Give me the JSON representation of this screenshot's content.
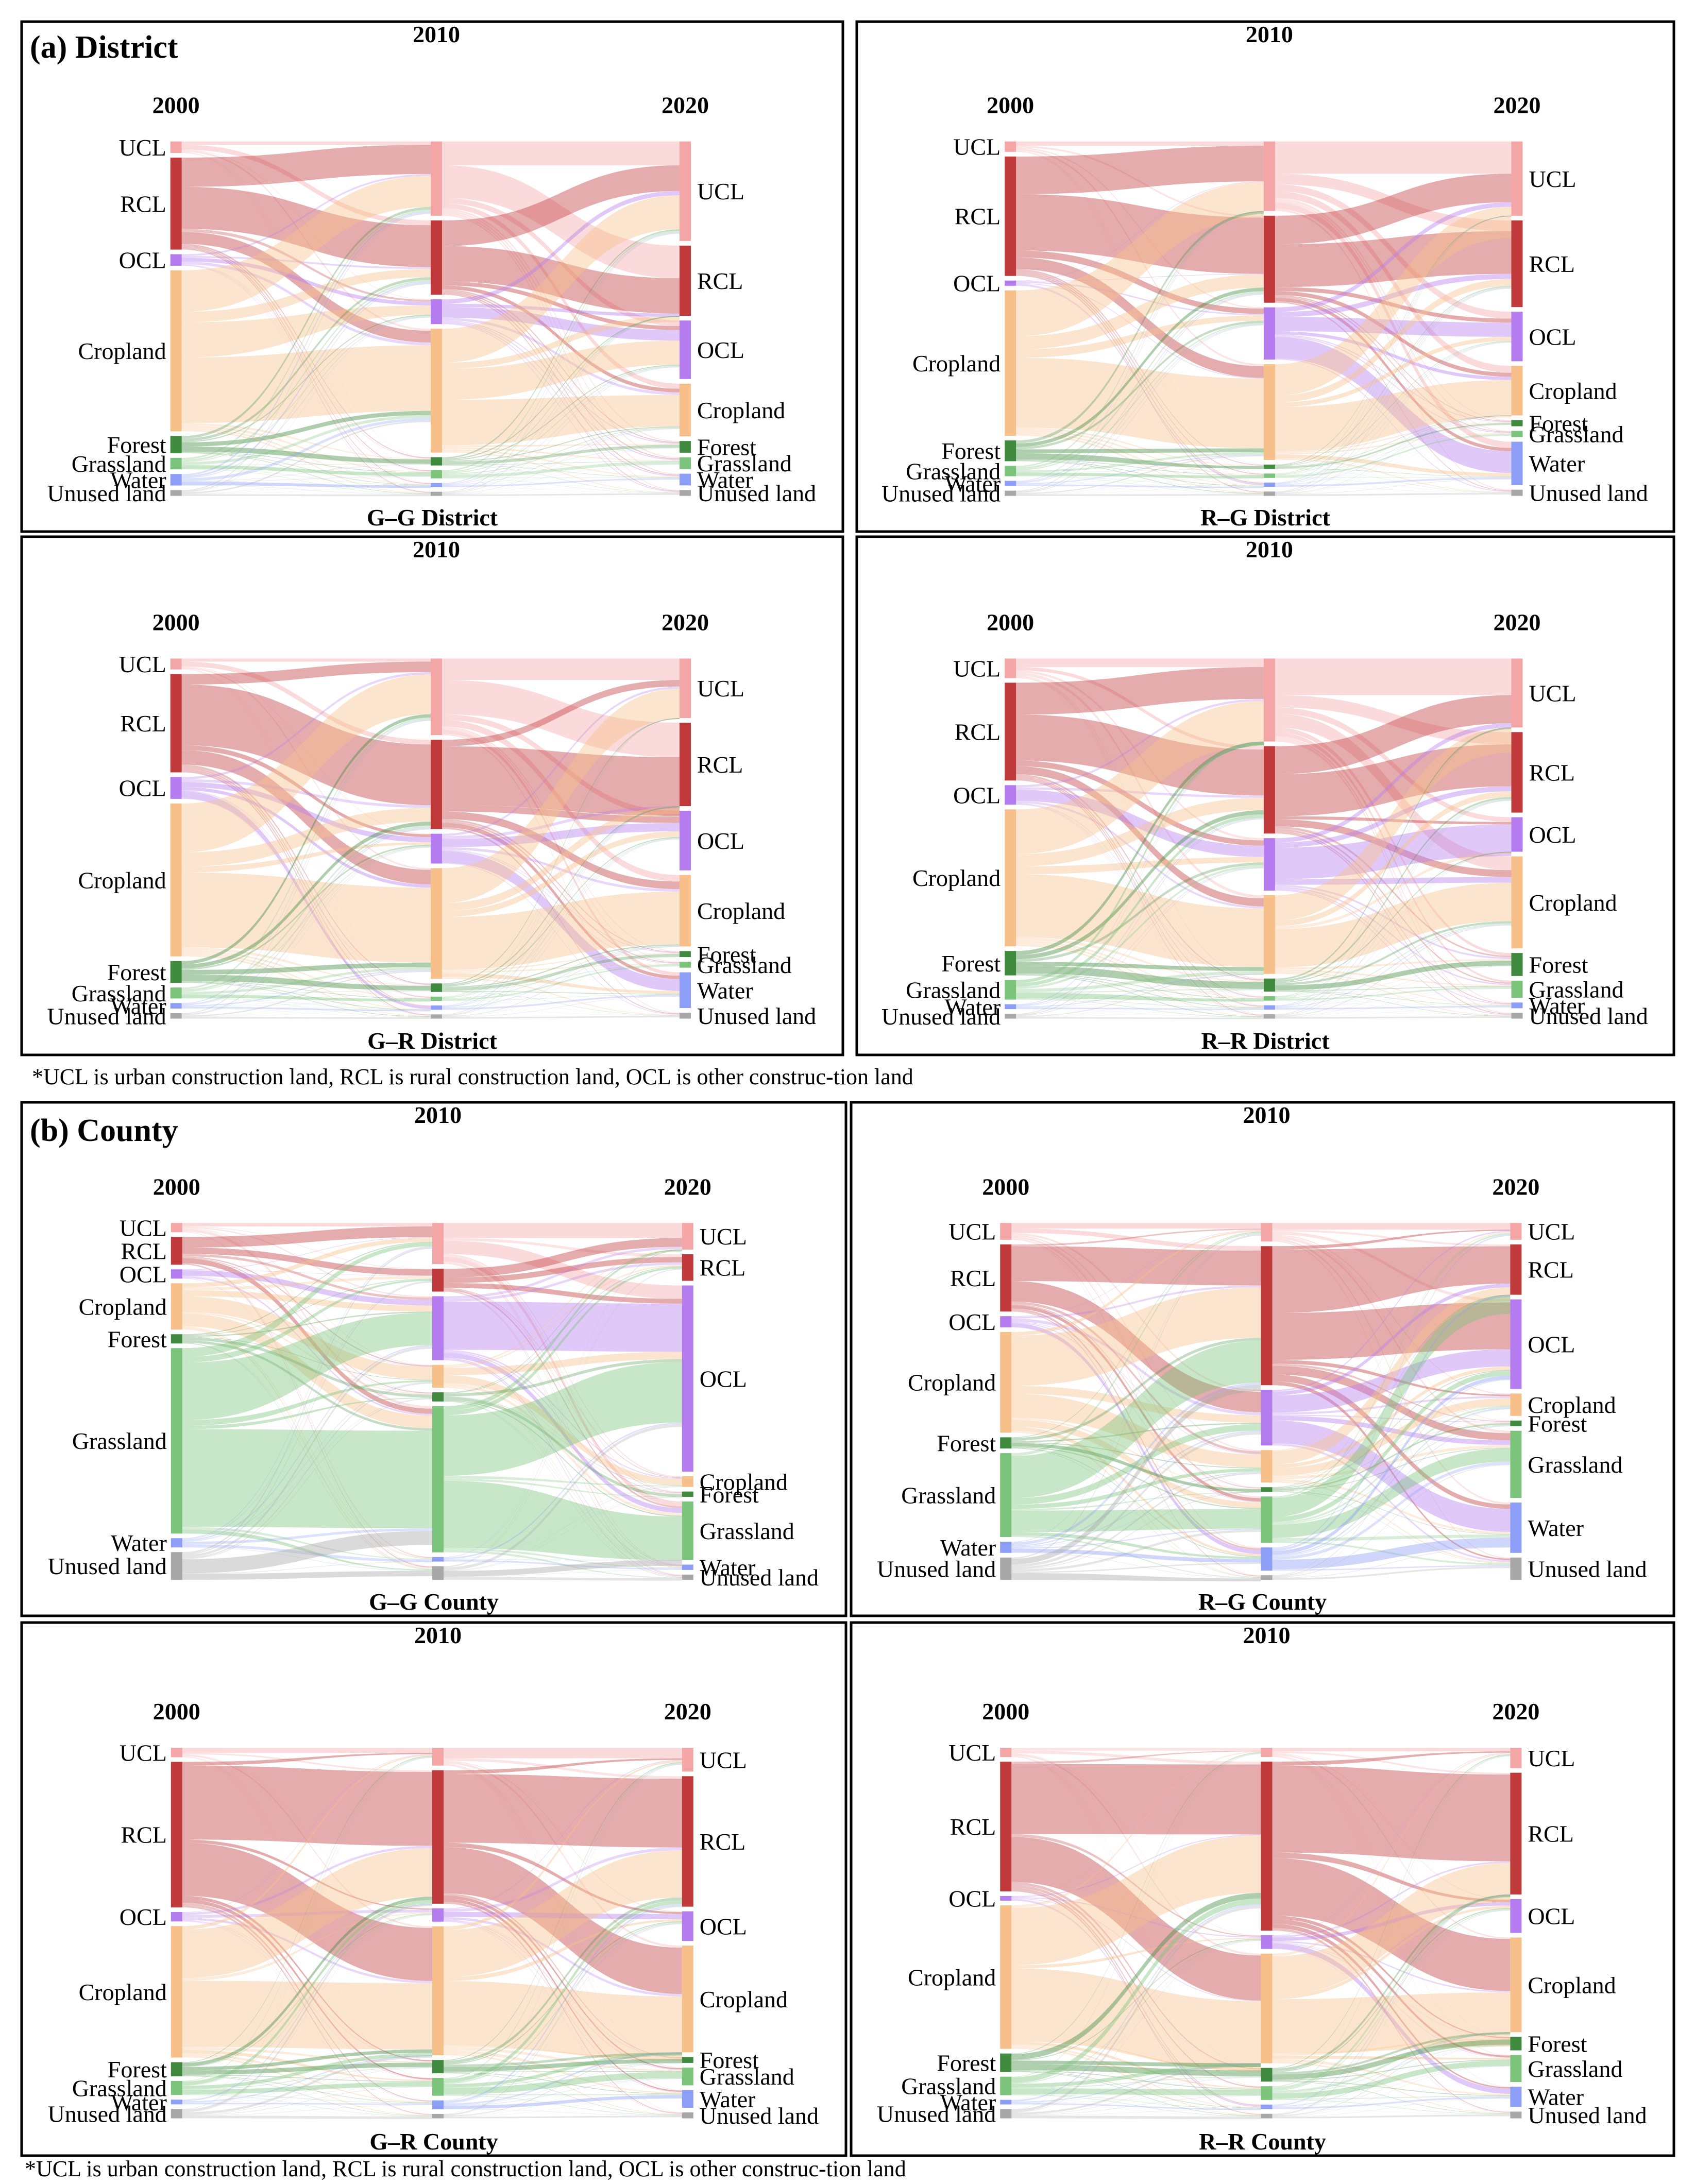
{
  "figure": {
    "section_a_title": "(a) District",
    "section_b_title": "(b) County",
    "footnote_a": "*UCL is urban construction land, RCL is rural construction land, OCL is other construc-tion land",
    "footnote_b": "*UCL is urban construction land, RCL is rural construction land, OCL is other construc-tion land"
  },
  "colors": {
    "UCL": "#f4a6a6",
    "RCL": "#c0393b",
    "OCL": "#b57cf0",
    "Cropland": "#f7c08a",
    "Forest": "#3f8a3f",
    "Grassland": "#7cc47c",
    "Water": "#8c9ef5",
    "Unused land": "#a8a8a8"
  },
  "chart_data": [
    {
      "type": "sankey",
      "title": "G–G District",
      "years": [
        "2000",
        "2010",
        "2020"
      ],
      "categories": [
        "UCL",
        "RCL",
        "OCL",
        "Cropland",
        "Forest",
        "Grassland",
        "Water",
        "Unused land"
      ],
      "shares": [
        [
          2,
          16,
          2,
          28,
          3,
          2,
          2,
          1
        ],
        [
          18,
          18,
          6,
          30,
          2,
          2,
          1,
          1
        ],
        [
          17,
          12,
          10,
          9,
          2,
          2,
          2,
          1
        ]
      ],
      "dominant_flows": [
        [
          "Cropland",
          "UCL"
        ],
        [
          "RCL",
          "UCL"
        ],
        [
          "Cropland",
          "Cropland"
        ],
        [
          "RCL",
          "RCL"
        ],
        [
          "UCL",
          "RCL"
        ],
        [
          "Cropland",
          "OCL"
        ]
      ]
    },
    {
      "type": "sankey",
      "title": "R–G District",
      "years": [
        "2000",
        "2010",
        "2020"
      ],
      "categories": [
        "UCL",
        "RCL",
        "OCL",
        "Cropland",
        "Forest",
        "Grassland",
        "Water",
        "Unused land"
      ],
      "shares": [
        [
          2,
          23,
          1,
          28,
          4,
          2,
          1,
          1
        ],
        [
          16,
          20,
          12,
          22,
          1,
          1,
          1,
          1
        ],
        [
          12,
          14,
          8,
          8,
          1,
          1,
          7,
          1
        ]
      ],
      "dominant_flows": [
        [
          "Cropland",
          "UCL"
        ],
        [
          "RCL",
          "RCL"
        ],
        [
          "Cropland",
          "Cropland"
        ],
        [
          "OCL",
          "Water"
        ],
        [
          "RCL",
          "UCL"
        ]
      ]
    },
    {
      "type": "sankey",
      "title": "G–R District",
      "years": [
        "2000",
        "2010",
        "2020"
      ],
      "categories": [
        "UCL",
        "RCL",
        "OCL",
        "Cropland",
        "Forest",
        "Grassland",
        "Water",
        "Unused land"
      ],
      "shares": [
        [
          2,
          18,
          4,
          28,
          4,
          2,
          1,
          1
        ],
        [
          18,
          21,
          7,
          26,
          2,
          1,
          1,
          1
        ],
        [
          10,
          14,
          10,
          12,
          1,
          1,
          6,
          1
        ]
      ],
      "dominant_flows": [
        [
          "Cropland",
          "UCL"
        ],
        [
          "RCL",
          "RCL"
        ],
        [
          "Cropland",
          "Cropland"
        ],
        [
          "OCL",
          "Water"
        ],
        [
          "UCL",
          "RCL"
        ]
      ]
    },
    {
      "type": "sankey",
      "title": "R–R District",
      "years": [
        "2000",
        "2010",
        "2020"
      ],
      "categories": [
        "UCL",
        "RCL",
        "OCL",
        "Cropland",
        "Forest",
        "Grassland",
        "Water",
        "Unused land"
      ],
      "shares": [
        [
          4,
          20,
          4,
          28,
          5,
          4,
          1,
          1
        ],
        [
          19,
          20,
          12,
          18,
          3,
          1,
          1,
          1
        ],
        [
          12,
          14,
          6,
          16,
          4,
          3,
          1,
          1
        ]
      ],
      "dominant_flows": [
        [
          "Cropland",
          "UCL"
        ],
        [
          "RCL",
          "RCL"
        ],
        [
          "Cropland",
          "Cropland"
        ],
        [
          "OCL",
          "OCL"
        ],
        [
          "RCL",
          "UCL"
        ]
      ]
    },
    {
      "type": "sankey",
      "title": "G–G County",
      "years": [
        "2000",
        "2010",
        "2020"
      ],
      "categories": [
        "UCL",
        "RCL",
        "OCL",
        "Cropland",
        "Forest",
        "Grassland",
        "Water",
        "Unused land"
      ],
      "shares": [
        [
          1,
          3,
          1,
          5,
          1,
          20,
          1,
          3
        ],
        [
          9,
          5,
          14,
          5,
          2,
          32,
          1,
          3
        ],
        [
          5,
          5,
          35,
          2,
          1,
          11,
          1,
          1
        ]
      ],
      "dominant_flows": [
        [
          "Grassland",
          "OCL"
        ],
        [
          "Grassland",
          "Grassland"
        ],
        [
          "OCL",
          "OCL"
        ],
        [
          "RCL",
          "UCL"
        ],
        [
          "Unused land",
          "Grassland"
        ]
      ]
    },
    {
      "type": "sankey",
      "title": "R–G County",
      "years": [
        "2000",
        "2010",
        "2020"
      ],
      "categories": [
        "UCL",
        "RCL",
        "OCL",
        "Cropland",
        "Forest",
        "Grassland",
        "Water",
        "Unused land"
      ],
      "shares": [
        [
          3,
          12,
          2,
          18,
          2,
          15,
          2,
          4
        ],
        [
          4,
          30,
          12,
          7,
          1,
          10,
          5,
          1
        ],
        [
          3,
          9,
          16,
          4,
          1,
          12,
          9,
          4
        ]
      ],
      "dominant_flows": [
        [
          "Cropland",
          "RCL"
        ],
        [
          "Grassland",
          "RCL"
        ],
        [
          "RCL",
          "RCL"
        ],
        [
          "OCL",
          "Water"
        ],
        [
          "RCL",
          "OCL"
        ]
      ]
    },
    {
      "type": "sankey",
      "title": "G–R County",
      "years": [
        "2000",
        "2010",
        "2020"
      ],
      "categories": [
        "UCL",
        "RCL",
        "OCL",
        "Cropland",
        "Forest",
        "Grassland",
        "Water",
        "Unused land"
      ],
      "shares": [
        [
          2,
          31,
          2,
          28,
          3,
          3,
          1,
          2
        ],
        [
          4,
          30,
          3,
          29,
          3,
          4,
          2,
          1
        ],
        [
          4,
          22,
          5,
          18,
          1,
          3,
          3,
          1
        ]
      ],
      "dominant_flows": [
        [
          "Cropland",
          "RCL"
        ],
        [
          "RCL",
          "Cropland"
        ],
        [
          "RCL",
          "RCL"
        ],
        [
          "Cropland",
          "Cropland"
        ],
        [
          "UCL",
          "UCL"
        ]
      ]
    },
    {
      "type": "sankey",
      "title": "R–R County",
      "years": [
        "2000",
        "2010",
        "2020"
      ],
      "categories": [
        "UCL",
        "RCL",
        "OCL",
        "Cropland",
        "Forest",
        "Grassland",
        "Water",
        "Unused land"
      ],
      "shares": [
        [
          2,
          28,
          1,
          31,
          4,
          4,
          1,
          2
        ],
        [
          2,
          37,
          3,
          24,
          3,
          3,
          1,
          1
        ],
        [
          3,
          18,
          5,
          14,
          2,
          4,
          3,
          1
        ]
      ],
      "dominant_flows": [
        [
          "Cropland",
          "RCL"
        ],
        [
          "RCL",
          "Cropland"
        ],
        [
          "RCL",
          "RCL"
        ],
        [
          "Cropland",
          "Cropland"
        ],
        [
          "OCL",
          "Water"
        ]
      ]
    }
  ]
}
